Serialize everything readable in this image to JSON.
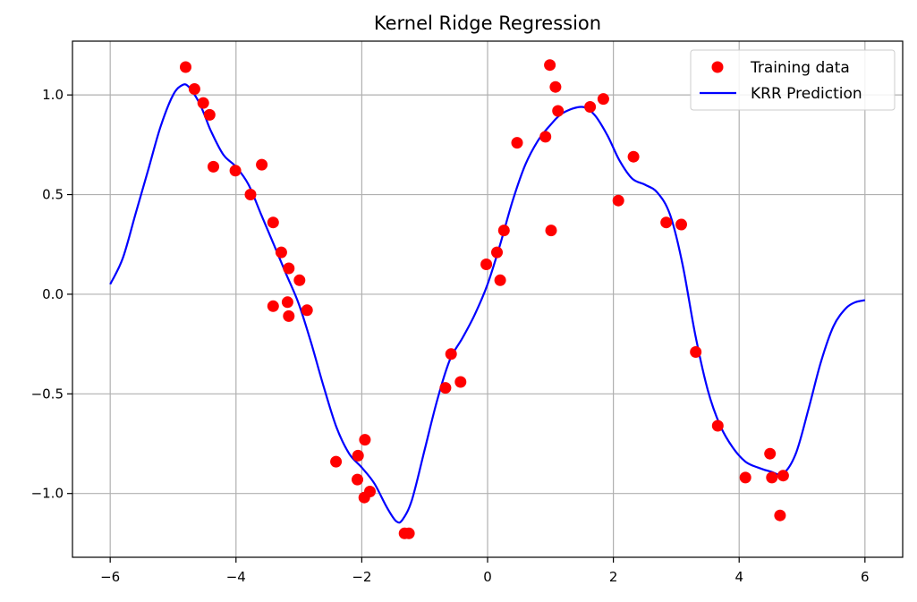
{
  "chart_data": {
    "type": "scatter",
    "title": "Kernel Ridge Regression",
    "xlabel": "",
    "ylabel": "",
    "xlim": [
      -6.6,
      6.6
    ],
    "ylim": [
      -1.32,
      1.27
    ],
    "xticks": [
      -6,
      -4,
      -2,
      0,
      2,
      4,
      6
    ],
    "xtick_labels": [
      "−6",
      "−4",
      "−2",
      "0",
      "2",
      "4",
      "6"
    ],
    "yticks": [
      -1.0,
      -0.5,
      0.0,
      0.5,
      1.0
    ],
    "ytick_labels": [
      "−1.0",
      "−0.5",
      "0.0",
      "0.5",
      "1.0"
    ],
    "grid": true,
    "legend_position": "top-right",
    "series": [
      {
        "name": "Training data",
        "kind": "scatter",
        "color": "#ff0000",
        "points": [
          [
            -4.8,
            1.14
          ],
          [
            -4.66,
            1.03
          ],
          [
            -4.52,
            0.96
          ],
          [
            -4.42,
            0.9
          ],
          [
            -4.36,
            0.64
          ],
          [
            -4.01,
            0.62
          ],
          [
            -3.77,
            0.5
          ],
          [
            -3.59,
            0.65
          ],
          [
            -3.41,
            0.36
          ],
          [
            -3.41,
            -0.06
          ],
          [
            -3.28,
            0.21
          ],
          [
            -3.18,
            -0.04
          ],
          [
            -3.16,
            0.13
          ],
          [
            -3.16,
            -0.11
          ],
          [
            -2.99,
            0.07
          ],
          [
            -2.87,
            -0.08
          ],
          [
            -2.41,
            -0.84
          ],
          [
            -2.07,
            -0.93
          ],
          [
            -2.06,
            -0.81
          ],
          [
            -1.96,
            -1.02
          ],
          [
            -1.95,
            -0.73
          ],
          [
            -1.87,
            -0.99
          ],
          [
            -1.32,
            -1.2
          ],
          [
            -1.25,
            -1.2
          ],
          [
            -0.67,
            -0.47
          ],
          [
            -0.58,
            -0.3
          ],
          [
            -0.43,
            -0.44
          ],
          [
            -0.02,
            0.15
          ],
          [
            0.15,
            0.21
          ],
          [
            0.2,
            0.07
          ],
          [
            0.26,
            0.32
          ],
          [
            0.47,
            0.76
          ],
          [
            0.92,
            0.79
          ],
          [
            0.99,
            1.15
          ],
          [
            1.01,
            0.32
          ],
          [
            1.08,
            1.04
          ],
          [
            1.12,
            0.92
          ],
          [
            1.63,
            0.94
          ],
          [
            1.84,
            0.98
          ],
          [
            2.08,
            0.47
          ],
          [
            2.32,
            0.69
          ],
          [
            2.84,
            0.36
          ],
          [
            3.08,
            0.35
          ],
          [
            3.31,
            -0.29
          ],
          [
            3.66,
            -0.66
          ],
          [
            4.1,
            -0.92
          ],
          [
            4.49,
            -0.8
          ],
          [
            4.52,
            -0.92
          ],
          [
            4.65,
            -1.11
          ],
          [
            4.7,
            -0.91
          ]
        ]
      },
      {
        "name": "KRR Prediction",
        "kind": "line",
        "color": "#0000ff",
        "points": [
          [
            -6.0,
            0.05
          ],
          [
            -5.8,
            0.18
          ],
          [
            -5.6,
            0.4
          ],
          [
            -5.4,
            0.62
          ],
          [
            -5.2,
            0.84
          ],
          [
            -5.0,
            1.0
          ],
          [
            -4.85,
            1.05
          ],
          [
            -4.75,
            1.04
          ],
          [
            -4.6,
            0.97
          ],
          [
            -4.5,
            0.9
          ],
          [
            -4.4,
            0.82
          ],
          [
            -4.2,
            0.7
          ],
          [
            -4.0,
            0.64
          ],
          [
            -3.8,
            0.55
          ],
          [
            -3.6,
            0.4
          ],
          [
            -3.4,
            0.25
          ],
          [
            -3.2,
            0.1
          ],
          [
            -3.0,
            -0.05
          ],
          [
            -2.8,
            -0.25
          ],
          [
            -2.6,
            -0.47
          ],
          [
            -2.4,
            -0.67
          ],
          [
            -2.2,
            -0.8
          ],
          [
            -2.0,
            -0.87
          ],
          [
            -1.8,
            -0.95
          ],
          [
            -1.6,
            -1.07
          ],
          [
            -1.45,
            -1.14
          ],
          [
            -1.35,
            -1.13
          ],
          [
            -1.2,
            -1.03
          ],
          [
            -1.0,
            -0.78
          ],
          [
            -0.8,
            -0.53
          ],
          [
            -0.6,
            -0.33
          ],
          [
            -0.4,
            -0.22
          ],
          [
            -0.2,
            -0.1
          ],
          [
            0.0,
            0.05
          ],
          [
            0.2,
            0.25
          ],
          [
            0.4,
            0.47
          ],
          [
            0.6,
            0.65
          ],
          [
            0.8,
            0.77
          ],
          [
            1.0,
            0.85
          ],
          [
            1.2,
            0.91
          ],
          [
            1.5,
            0.94
          ],
          [
            1.7,
            0.9
          ],
          [
            1.9,
            0.8
          ],
          [
            2.1,
            0.67
          ],
          [
            2.3,
            0.58
          ],
          [
            2.5,
            0.55
          ],
          [
            2.7,
            0.51
          ],
          [
            2.9,
            0.4
          ],
          [
            3.1,
            0.15
          ],
          [
            3.3,
            -0.2
          ],
          [
            3.5,
            -0.48
          ],
          [
            3.7,
            -0.66
          ],
          [
            3.9,
            -0.77
          ],
          [
            4.1,
            -0.84
          ],
          [
            4.3,
            -0.87
          ],
          [
            4.5,
            -0.89
          ],
          [
            4.7,
            -0.9
          ],
          [
            4.9,
            -0.8
          ],
          [
            5.1,
            -0.58
          ],
          [
            5.3,
            -0.34
          ],
          [
            5.5,
            -0.16
          ],
          [
            5.7,
            -0.07
          ],
          [
            5.85,
            -0.04
          ],
          [
            6.0,
            -0.03
          ]
        ]
      }
    ]
  }
}
